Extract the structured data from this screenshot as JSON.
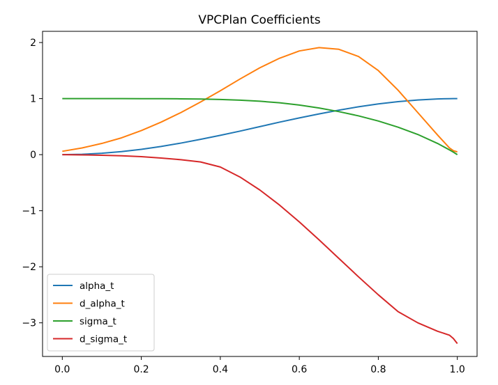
{
  "chart_data": {
    "type": "line",
    "title": "VPCPlan Coefficients",
    "xlabel": "",
    "ylabel": "",
    "xlim": [
      -0.05,
      1.05
    ],
    "ylim": [
      -3.6,
      2.2
    ],
    "xticks": [
      0.0,
      0.2,
      0.4,
      0.6,
      0.8,
      1.0
    ],
    "xtick_labels": [
      "0.0",
      "0.2",
      "0.4",
      "0.6",
      "0.8",
      "1.0"
    ],
    "yticks": [
      -3,
      -2,
      -1,
      0,
      1,
      2
    ],
    "ytick_labels": [
      "−3",
      "−2",
      "−1",
      "0",
      "1",
      "2"
    ],
    "grid": false,
    "legend_position": "lower-left",
    "x": [
      0.0,
      0.05,
      0.1,
      0.15,
      0.2,
      0.25,
      0.3,
      0.35,
      0.4,
      0.45,
      0.5,
      0.55,
      0.6,
      0.65,
      0.7,
      0.75,
      0.8,
      0.85,
      0.9,
      0.95,
      0.98,
      0.99,
      1.0
    ],
    "series": [
      {
        "name": "alpha_t",
        "color": "#1f77b4",
        "values": [
          0.0,
          0.006,
          0.025,
          0.054,
          0.095,
          0.146,
          0.206,
          0.273,
          0.345,
          0.42,
          0.5,
          0.58,
          0.655,
          0.727,
          0.794,
          0.854,
          0.905,
          0.946,
          0.975,
          0.994,
          0.999,
          1.0,
          1.0
        ]
      },
      {
        "name": "d_alpha_t",
        "color": "#ff7f0e",
        "values": [
          0.06,
          0.12,
          0.2,
          0.3,
          0.43,
          0.58,
          0.75,
          0.94,
          1.14,
          1.35,
          1.55,
          1.72,
          1.85,
          1.91,
          1.88,
          1.75,
          1.5,
          1.15,
          0.75,
          0.35,
          0.12,
          0.07,
          0.05
        ]
      },
      {
        "name": "sigma_t",
        "color": "#2ca02c",
        "values": [
          1.0,
          1.0,
          1.0,
          1.0,
          0.999,
          0.998,
          0.996,
          0.992,
          0.985,
          0.972,
          0.953,
          0.925,
          0.885,
          0.832,
          0.768,
          0.692,
          0.6,
          0.49,
          0.36,
          0.2,
          0.085,
          0.045,
          0.0
        ]
      },
      {
        "name": "d_sigma_t",
        "color": "#d62728",
        "values": [
          0.0,
          -0.005,
          -0.01,
          -0.02,
          -0.035,
          -0.06,
          -0.09,
          -0.13,
          -0.22,
          -0.4,
          -0.63,
          -0.9,
          -1.2,
          -1.52,
          -1.85,
          -2.18,
          -2.5,
          -2.8,
          -3.0,
          -3.15,
          -3.22,
          -3.28,
          -3.37
        ]
      }
    ]
  }
}
